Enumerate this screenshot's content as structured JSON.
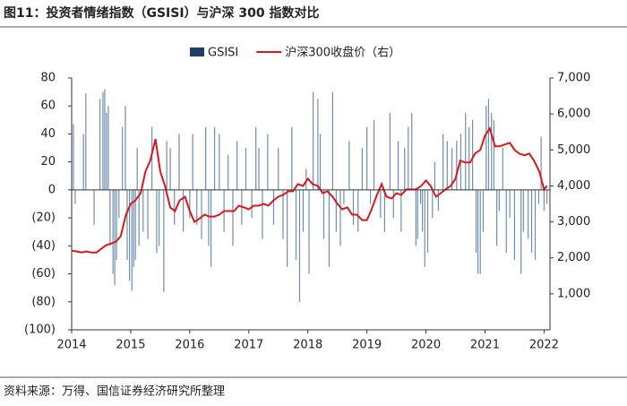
{
  "chart_data": {
    "type": "bar-line",
    "title": "图11：投资者情绪指数（GSISI）与沪深 300 指数对比",
    "source": "资料来源：万得、国信证券经济研究所整理",
    "xlim": [
      2014,
      2022.1
    ],
    "xticks": [
      2014,
      2015,
      2016,
      2017,
      2018,
      2019,
      2020,
      2021,
      2022
    ],
    "ylim": [
      -100,
      80
    ],
    "yticks": [
      80,
      60,
      40,
      20,
      0,
      {
        "value": -20,
        "label": "(20)"
      },
      {
        "value": -40,
        "label": "(40)"
      },
      {
        "value": -60,
        "label": "(60)"
      },
      {
        "value": -80,
        "label": "(80)"
      },
      {
        "value": -100,
        "label": "(100)"
      }
    ],
    "y2lim": [
      0,
      7000
    ],
    "y2ticks": [
      {
        "value": 1000,
        "label": "1,000"
      },
      {
        "value": 2000,
        "label": "2,000"
      },
      {
        "value": 3000,
        "label": "3,000"
      },
      {
        "value": 4000,
        "label": "4,000"
      },
      {
        "value": 5000,
        "label": "5,000"
      },
      {
        "value": 6000,
        "label": "6,000"
      },
      {
        "value": 7000,
        "label": "7,000"
      }
    ],
    "series": [
      {
        "name": "GSISI",
        "type": "bar",
        "color": "#1f3f66",
        "bar_color": "#6f8fae",
        "x": [
          2014.03,
          2014.06,
          2014.2,
          2014.24,
          2014.38,
          2014.48,
          2014.53,
          2014.56,
          2014.59,
          2014.62,
          2014.65,
          2014.7,
          2014.73,
          2014.76,
          2014.8,
          2014.86,
          2014.91,
          2014.94,
          2014.98,
          2015.02,
          2015.05,
          2015.08,
          2015.11,
          2015.14,
          2015.21,
          2015.29,
          2015.36,
          2015.44,
          2015.48,
          2015.56,
          2015.61,
          2015.67,
          2015.74,
          2015.82,
          2015.89,
          2016.0,
          2016.05,
          2016.12,
          2016.2,
          2016.27,
          2016.32,
          2016.36,
          2016.42,
          2016.5,
          2016.58,
          2016.65,
          2016.73,
          2016.8,
          2016.88,
          2016.95,
          2017.05,
          2017.12,
          2017.17,
          2017.23,
          2017.32,
          2017.42,
          2017.5,
          2017.58,
          2017.65,
          2017.73,
          2017.8,
          2017.86,
          2017.92,
          2017.97,
          2018.02,
          2018.09,
          2018.17,
          2018.21,
          2018.27,
          2018.36,
          2018.42,
          2018.48,
          2018.55,
          2018.61,
          2018.7,
          2018.77,
          2018.85,
          2018.92,
          2019.0,
          2019.06,
          2019.12,
          2019.23,
          2019.3,
          2019.39,
          2019.45,
          2019.53,
          2019.58,
          2019.64,
          2019.7,
          2019.76,
          2019.83,
          2019.86,
          2019.91,
          2019.94,
          2019.98,
          2020.03,
          2020.11,
          2020.15,
          2020.21,
          2020.29,
          2020.36,
          2020.44,
          2020.52,
          2020.59,
          2020.67,
          2020.73,
          2020.79,
          2020.85,
          2020.88,
          2020.92,
          2020.97,
          2021.02,
          2021.06,
          2021.11,
          2021.15,
          2021.2,
          2021.24,
          2021.3,
          2021.36,
          2021.42,
          2021.5,
          2021.61,
          2021.65,
          2021.73,
          2021.79,
          2021.85,
          2021.91,
          2021.95,
          2022.0,
          2022.05
        ],
        "values": [
          47,
          -10,
          40,
          69,
          -25,
          65,
          70,
          72,
          55,
          60,
          -40,
          -60,
          -68,
          -50,
          -20,
          45,
          60,
          -50,
          -65,
          -72,
          -55,
          -50,
          30,
          -40,
          -30,
          -35,
          45,
          -45,
          -40,
          -73,
          35,
          30,
          -25,
          40,
          -30,
          -20,
          40,
          -25,
          -35,
          45,
          -40,
          -55,
          45,
          40,
          -30,
          25,
          -40,
          35,
          -25,
          30,
          -20,
          45,
          30,
          -35,
          40,
          -25,
          30,
          -35,
          -55,
          45,
          -50,
          -80,
          -30,
          15,
          -60,
          70,
          65,
          40,
          -35,
          -55,
          70,
          -30,
          -40,
          -10,
          35,
          -25,
          -30,
          30,
          45,
          -10,
          50,
          -20,
          -30,
          55,
          -20,
          35,
          -30,
          30,
          45,
          55,
          -40,
          -35,
          -10,
          -30,
          -55,
          -45,
          -20,
          20,
          -15,
          40,
          35,
          30,
          35,
          40,
          55,
          45,
          50,
          -45,
          -60,
          -60,
          -30,
          60,
          65,
          55,
          50,
          -40,
          -15,
          30,
          -45,
          -20,
          -50,
          -60,
          -30,
          -35,
          -45,
          -50,
          -10,
          38,
          -15,
          -10
        ]
      },
      {
        "name": "沪深300收盘价（右）",
        "type": "line",
        "axis": "y2",
        "color": "#d7191c",
        "x": [
          2014.0,
          2014.08,
          2014.17,
          2014.25,
          2014.33,
          2014.42,
          2014.5,
          2014.58,
          2014.67,
          2014.75,
          2014.83,
          2014.92,
          2015.0,
          2015.08,
          2015.17,
          2015.25,
          2015.33,
          2015.42,
          2015.5,
          2015.58,
          2015.67,
          2015.75,
          2015.83,
          2015.92,
          2016.0,
          2016.08,
          2016.17,
          2016.25,
          2016.33,
          2016.42,
          2016.5,
          2016.58,
          2016.67,
          2016.75,
          2016.83,
          2016.92,
          2017.0,
          2017.08,
          2017.17,
          2017.25,
          2017.33,
          2017.42,
          2017.5,
          2017.58,
          2017.67,
          2017.75,
          2017.83,
          2017.92,
          2018.0,
          2018.08,
          2018.17,
          2018.25,
          2018.33,
          2018.42,
          2018.5,
          2018.58,
          2018.67,
          2018.75,
          2018.83,
          2018.92,
          2019.0,
          2019.08,
          2019.17,
          2019.25,
          2019.33,
          2019.42,
          2019.5,
          2019.58,
          2019.67,
          2019.75,
          2019.83,
          2019.92,
          2020.0,
          2020.08,
          2020.17,
          2020.25,
          2020.33,
          2020.42,
          2020.5,
          2020.58,
          2020.67,
          2020.75,
          2020.83,
          2020.92,
          2021.0,
          2021.08,
          2021.17,
          2021.25,
          2021.33,
          2021.42,
          2021.5,
          2021.58,
          2021.67,
          2021.75,
          2021.83,
          2021.92,
          2022.0,
          2022.05
        ],
        "values": [
          2200,
          2180,
          2150,
          2180,
          2150,
          2150,
          2250,
          2350,
          2400,
          2450,
          2600,
          3200,
          3500,
          3600,
          3800,
          4400,
          4700,
          5300,
          4400,
          4000,
          3400,
          3300,
          3600,
          3700,
          3300,
          3000,
          3100,
          3200,
          3150,
          3150,
          3200,
          3300,
          3300,
          3300,
          3450,
          3400,
          3350,
          3450,
          3450,
          3500,
          3450,
          3600,
          3700,
          3750,
          3850,
          3850,
          4050,
          4000,
          4200,
          4050,
          4000,
          3800,
          3850,
          3700,
          3500,
          3350,
          3400,
          3200,
          3200,
          3050,
          3050,
          3350,
          3750,
          4050,
          3700,
          3650,
          3800,
          3750,
          3900,
          3900,
          3900,
          4000,
          4150,
          4000,
          3700,
          3800,
          3900,
          4000,
          4200,
          4700,
          4650,
          4650,
          4900,
          5000,
          5400,
          5600,
          5100,
          5100,
          5150,
          5200,
          5000,
          4900,
          4850,
          4900,
          4700,
          4400,
          3900,
          4000
        ]
      }
    ]
  }
}
